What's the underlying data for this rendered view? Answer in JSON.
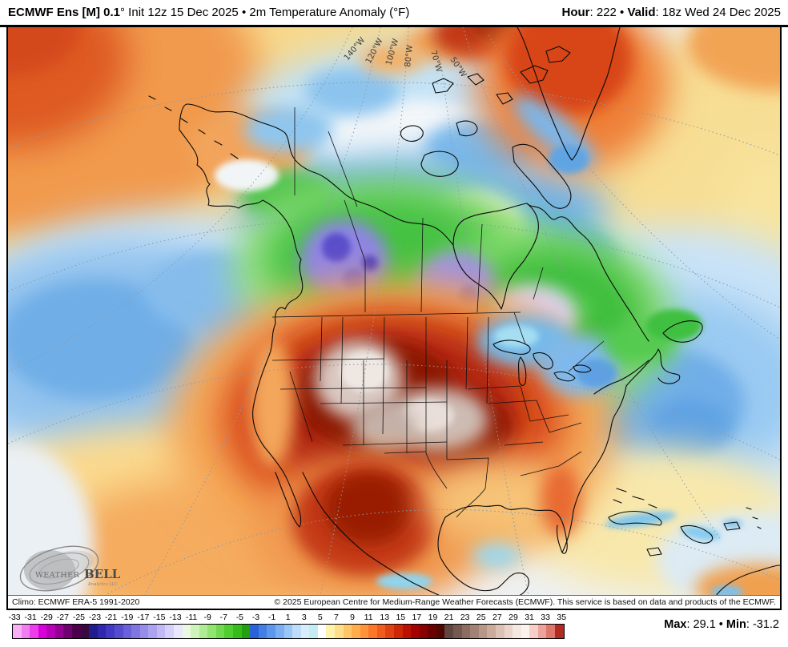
{
  "header": {
    "title_bold": "ECMWF Ens [M] 0.1",
    "title_rest": "° Init 12z 15 Dec 2025 • 2m Temperature Anomaly (°F)",
    "hour_label": "Hour",
    "hour_rest": ": 222 • ",
    "valid_label": "Valid",
    "valid_rest": ": 18z Wed 24 Dec 2025"
  },
  "map": {
    "lon_labels": [
      "140°W",
      "120°W",
      "100°W",
      "80°W",
      "70°W",
      "50°W"
    ],
    "logo": {
      "brand_weather": "WEATHER",
      "brand_bell": "BELL",
      "subtitle": "Analytics LLC"
    }
  },
  "attribution": {
    "climo": "Climo: ECMWF ERA-5 1991-2020",
    "copyright": "© 2025 European Centre for Medium-Range Weather Forecasts (ECMWF). This service is based on data and products of the ECMWF."
  },
  "colorbar": {
    "tick_labels": [
      "-33",
      "-31",
      "-29",
      "-27",
      "-25",
      "-23",
      "-21",
      "-19",
      "-17",
      "-15",
      "-13",
      "-11",
      "-9",
      "-7",
      "-5",
      "-3",
      "-1",
      "1",
      "3",
      "5",
      "7",
      "9",
      "11",
      "13",
      "15",
      "17",
      "19",
      "21",
      "23",
      "25",
      "27",
      "29",
      "31",
      "33",
      "35"
    ],
    "cells": [
      "#F7B0F7",
      "#F17EF1",
      "#EC3CEC",
      "#DB00DB",
      "#B800B8",
      "#940094",
      "#700070",
      "#4C004C",
      "#380840",
      "#201C8C",
      "#2F28AE",
      "#4138C4",
      "#544CCF",
      "#6A60D9",
      "#8076E2",
      "#968DEA",
      "#ABA3F0",
      "#C0B9F5",
      "#D5D1FA",
      "#E9E7FC",
      "#EAF9E1",
      "#CFF3BA",
      "#B0EC96",
      "#90E470",
      "#6FDA4E",
      "#50CE2F",
      "#36BC1A",
      "#22A00D",
      "#2A62D8",
      "#427EE4",
      "#5D97EC",
      "#7BAFF2",
      "#9AC6F7",
      "#BCDCFA",
      "#D8EDFC",
      "#C4ECF3",
      "#FFFFFF",
      "#FFF2AC",
      "#FFDE89",
      "#FFC667",
      "#FFAD4D",
      "#FF9339",
      "#FB7829",
      "#F05C1D",
      "#E04112",
      "#CE2708",
      "#BA1102",
      "#A30300",
      "#880000",
      "#6C0000",
      "#520600",
      "#5F463F",
      "#75594F",
      "#8B6D62",
      "#A18275",
      "#B69788",
      "#CAAC9C",
      "#DCC2B4",
      "#EBD5CA",
      "#F5E8E0",
      "#FBF2ED",
      "#F7CFC8",
      "#ECA39B",
      "#DF766D",
      "#B12B23"
    ],
    "max_label": "Max",
    "max_rest": ": 29.1 • ",
    "min_label": "Min",
    "min_rest": ": -31.2"
  }
}
